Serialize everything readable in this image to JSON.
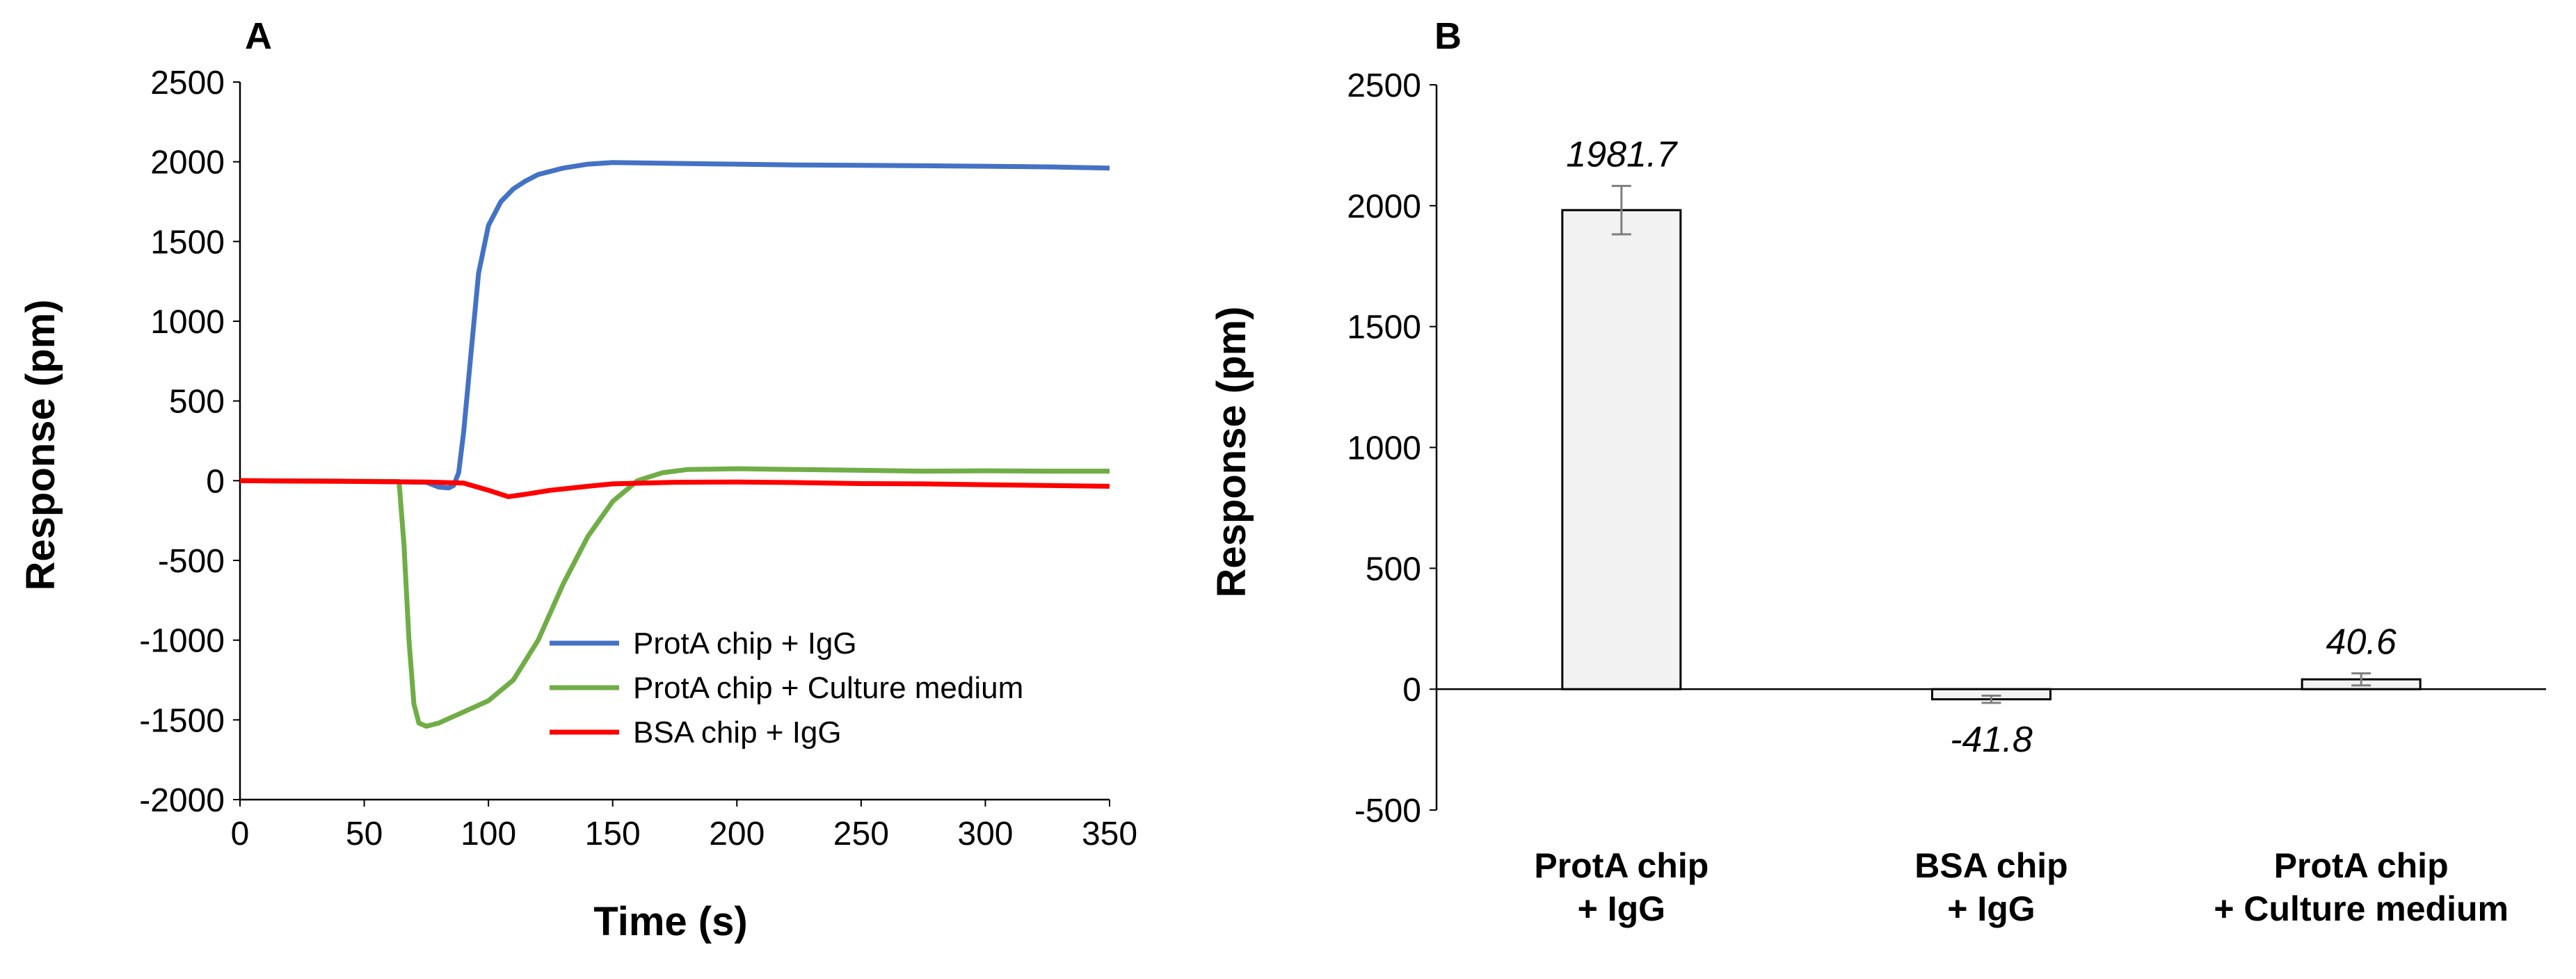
{
  "chart_data": [
    {
      "panel": "A",
      "type": "line",
      "title": "",
      "xlabel": "Time (s)",
      "ylabel": "Response (pm)",
      "xlim": [
        0,
        350
      ],
      "ylim": [
        -2000,
        2500
      ],
      "x_ticks": [
        "0",
        "50",
        "100",
        "150",
        "200",
        "250",
        "300",
        "350"
      ],
      "y_ticks": [
        "2500",
        "2000",
        "1500",
        "1000",
        "500",
        "0",
        "-500",
        "-1000",
        "-1500",
        "-2000"
      ],
      "legend_position": "lower-right",
      "series": [
        {
          "name": "ProtA chip + IgG",
          "color": "#4472C4",
          "points": [
            [
              0,
              0
            ],
            [
              40,
              -2
            ],
            [
              75,
              -10
            ],
            [
              80,
              -40
            ],
            [
              84,
              -45
            ],
            [
              86,
              -30
            ],
            [
              88,
              50
            ],
            [
              90,
              300
            ],
            [
              93,
              800
            ],
            [
              96,
              1300
            ],
            [
              100,
              1600
            ],
            [
              105,
              1750
            ],
            [
              110,
              1830
            ],
            [
              115,
              1880
            ],
            [
              120,
              1920
            ],
            [
              130,
              1960
            ],
            [
              140,
              1985
            ],
            [
              150,
              1995
            ],
            [
              175,
              1990
            ],
            [
              200,
              1985
            ],
            [
              225,
              1980
            ],
            [
              250,
              1978
            ],
            [
              275,
              1975
            ],
            [
              300,
              1972
            ],
            [
              325,
              1968
            ],
            [
              350,
              1960
            ]
          ]
        },
        {
          "name": "ProtA chip + Culture medium",
          "color": "#70AD47",
          "points": [
            [
              0,
              0
            ],
            [
              64,
              -5
            ],
            [
              66,
              -400
            ],
            [
              68,
              -1000
            ],
            [
              70,
              -1400
            ],
            [
              72,
              -1520
            ],
            [
              75,
              -1540
            ],
            [
              80,
              -1520
            ],
            [
              90,
              -1450
            ],
            [
              100,
              -1380
            ],
            [
              110,
              -1250
            ],
            [
              120,
              -1000
            ],
            [
              130,
              -650
            ],
            [
              140,
              -350
            ],
            [
              150,
              -130
            ],
            [
              160,
              0
            ],
            [
              170,
              50
            ],
            [
              180,
              70
            ],
            [
              200,
              75
            ],
            [
              225,
              70
            ],
            [
              250,
              65
            ],
            [
              275,
              60
            ],
            [
              300,
              62
            ],
            [
              325,
              60
            ],
            [
              350,
              60
            ]
          ]
        },
        {
          "name": "BSA chip + IgG",
          "color": "#FF0000",
          "points": [
            [
              0,
              0
            ],
            [
              25,
              -3
            ],
            [
              50,
              -5
            ],
            [
              75,
              -8
            ],
            [
              90,
              -15
            ],
            [
              100,
              -60
            ],
            [
              108,
              -100
            ],
            [
              115,
              -85
            ],
            [
              125,
              -60
            ],
            [
              140,
              -35
            ],
            [
              150,
              -20
            ],
            [
              175,
              -10
            ],
            [
              200,
              -8
            ],
            [
              225,
              -12
            ],
            [
              250,
              -18
            ],
            [
              275,
              -20
            ],
            [
              300,
              -25
            ],
            [
              325,
              -30
            ],
            [
              350,
              -35
            ]
          ]
        }
      ]
    },
    {
      "panel": "B",
      "type": "bar",
      "title": "",
      "xlabel": "",
      "ylabel": "Response (pm)",
      "ylim": [
        -500,
        2500
      ],
      "y_ticks": [
        "2500",
        "2000",
        "1500",
        "1000",
        "500",
        "0",
        "-500"
      ],
      "categories": [
        [
          "ProtA chip",
          "+ IgG"
        ],
        [
          "BSA chip",
          "+ IgG"
        ],
        [
          "ProtA chip",
          "+ Culture medium"
        ]
      ],
      "values": [
        1981.7,
        -41.8,
        40.6
      ],
      "errors": [
        100,
        15,
        25
      ],
      "value_labels": [
        "1981.7",
        "-41.8",
        "40.6"
      ],
      "bar_fill": "#F2F2F2",
      "bar_stroke": "#000000",
      "error_color": "#7F7F7F"
    }
  ]
}
